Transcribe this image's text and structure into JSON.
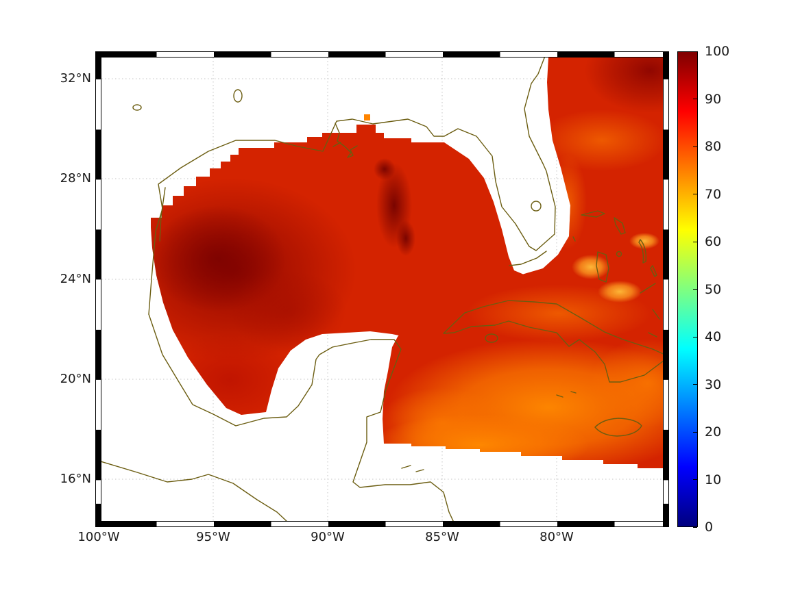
{
  "chart_data": {
    "type": "heatmap",
    "title": "",
    "region_shown": "Gulf of Mexico, Florida, Cuba and western Caribbean",
    "x_axis": {
      "label": "",
      "ticks": [
        "100°W",
        "95°W",
        "90°W",
        "85°W",
        "80°W"
      ]
    },
    "y_axis": {
      "label": "",
      "ticks": [
        "32°N",
        "28°N",
        "24°N",
        "20°N",
        "16°N"
      ]
    },
    "colorbar": {
      "min": 0,
      "max": 100,
      "ticks": [
        "0",
        "10",
        "20",
        "30",
        "40",
        "50",
        "60",
        "70",
        "80",
        "90",
        "100"
      ],
      "colormap": "jet",
      "stops": [
        {
          "value": 0,
          "color": "#00007f"
        },
        {
          "value": 12.5,
          "color": "#0000ff"
        },
        {
          "value": 37.5,
          "color": "#00ffff"
        },
        {
          "value": 62.5,
          "color": "#ffff00"
        },
        {
          "value": 87.5,
          "color": "#ff0000"
        },
        {
          "value": 100,
          "color": "#7f0000"
        }
      ]
    },
    "map_extent": {
      "west_lon": "100°W",
      "east_lon": "~75.3°W",
      "south_lat": "~14.3°N",
      "north_lat": "~32.9°N"
    },
    "grid": {
      "visible": true,
      "style": "dotted"
    },
    "series_regions": [
      {
        "region": "western Gulf of Mexico",
        "approx_value_range": [
          92,
          100
        ]
      },
      {
        "region": "central and eastern Gulf of Mexico",
        "approx_value_range": [
          85,
          93
        ]
      },
      {
        "region": "Bay of Campeche",
        "approx_value_range": [
          88,
          95
        ]
      },
      {
        "region": "Atlantic east of Florida",
        "approx_value_range": [
          80,
          95
        ]
      },
      {
        "region": "Bahamas banks",
        "approx_value_range": [
          68,
          78
        ]
      },
      {
        "region": "Caribbean south of Cuba",
        "approx_value_range": [
          72,
          82
        ]
      },
      {
        "region": "land and masked coastal margin",
        "approx_value_range": null
      }
    ],
    "coastline_features": [
      "US Gulf Coast",
      "Mississippi Delta",
      "Mexico",
      "Yucatan Peninsula",
      "Florida",
      "Florida Keys",
      "Cuba",
      "Bahamas",
      "Jamaica",
      "Honduras",
      "Pacific coast of Mexico"
    ]
  },
  "style": {
    "background": "#ffffff",
    "coastline_color": "#6b5d11",
    "gridline_color": "#c4c4c4",
    "label_color": "#1a1a1a",
    "frame_colors": [
      "#000000",
      "#ffffff"
    ]
  }
}
